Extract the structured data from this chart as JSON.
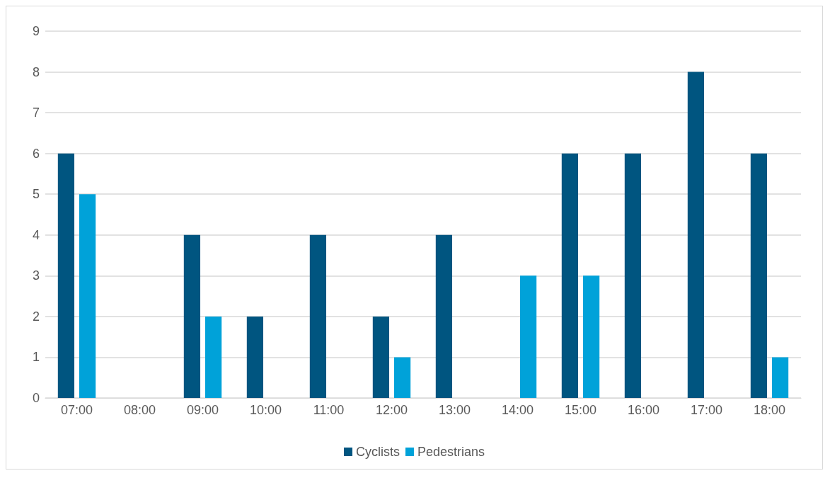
{
  "chart_data": {
    "type": "bar",
    "categories": [
      "07:00",
      "08:00",
      "09:00",
      "10:00",
      "11:00",
      "12:00",
      "13:00",
      "14:00",
      "15:00",
      "16:00",
      "17:00",
      "18:00"
    ],
    "series": [
      {
        "name": "Cyclists",
        "color": "#005580",
        "values": [
          6,
          0,
          4,
          2,
          4,
          2,
          4,
          0,
          6,
          6,
          8,
          6
        ]
      },
      {
        "name": "Pedestrians",
        "color": "#00a2d9",
        "values": [
          5,
          0,
          2,
          0,
          0,
          1,
          0,
          3,
          3,
          0,
          0,
          1
        ]
      }
    ],
    "ylim": [
      0,
      9
    ],
    "yticks": [
      0,
      1,
      2,
      3,
      4,
      5,
      6,
      7,
      8,
      9
    ],
    "grid": "y",
    "legend": "bottom"
  }
}
